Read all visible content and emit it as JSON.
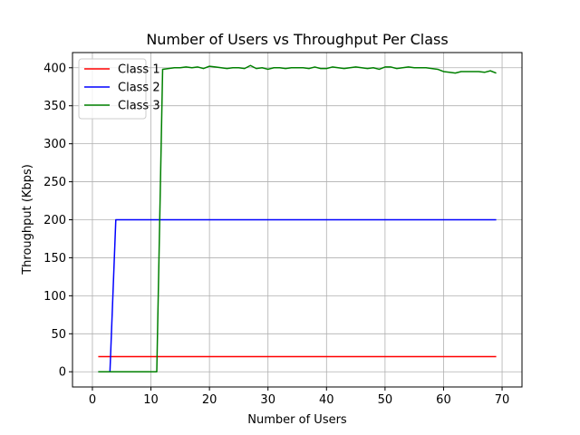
{
  "chart_data": {
    "type": "line",
    "title": "Number of Users vs Throughput Per Class",
    "xlabel": "Number of Users",
    "ylabel": "Throughput (Kbps)",
    "xlim": [
      -3.4,
      73.4
    ],
    "ylim": [
      -20,
      420
    ],
    "xticks": [
      0,
      10,
      20,
      30,
      40,
      50,
      60,
      70
    ],
    "yticks": [
      0,
      50,
      100,
      150,
      200,
      250,
      300,
      350,
      400
    ],
    "grid": true,
    "legend_position": "top-left",
    "series": [
      {
        "name": "Class 1",
        "color": "#ff0000",
        "points": [
          [
            1,
            20
          ],
          [
            69,
            20
          ]
        ]
      },
      {
        "name": "Class 2",
        "color": "#0000ff",
        "points": [
          [
            1,
            0
          ],
          [
            3,
            0
          ],
          [
            4,
            200
          ],
          [
            69,
            200
          ]
        ]
      },
      {
        "name": "Class 3",
        "color": "#008000",
        "points": [
          [
            1,
            0
          ],
          [
            11,
            0
          ],
          [
            12,
            398
          ],
          [
            13,
            399
          ],
          [
            14,
            400
          ],
          [
            15,
            400
          ],
          [
            16,
            401
          ],
          [
            17,
            400
          ],
          [
            18,
            401
          ],
          [
            19,
            399
          ],
          [
            20,
            402
          ],
          [
            21,
            401
          ],
          [
            22,
            400
          ],
          [
            23,
            399
          ],
          [
            24,
            400
          ],
          [
            25,
            400
          ],
          [
            26,
            399
          ],
          [
            27,
            403
          ],
          [
            28,
            399
          ],
          [
            29,
            400
          ],
          [
            30,
            398
          ],
          [
            31,
            400
          ],
          [
            32,
            400
          ],
          [
            33,
            399
          ],
          [
            34,
            400
          ],
          [
            35,
            400
          ],
          [
            36,
            400
          ],
          [
            37,
            399
          ],
          [
            38,
            401
          ],
          [
            39,
            399
          ],
          [
            40,
            399
          ],
          [
            41,
            401
          ],
          [
            42,
            400
          ],
          [
            43,
            399
          ],
          [
            44,
            400
          ],
          [
            45,
            401
          ],
          [
            46,
            400
          ],
          [
            47,
            399
          ],
          [
            48,
            400
          ],
          [
            49,
            398
          ],
          [
            50,
            401
          ],
          [
            51,
            401
          ],
          [
            52,
            399
          ],
          [
            53,
            400
          ],
          [
            54,
            401
          ],
          [
            55,
            400
          ],
          [
            56,
            400
          ],
          [
            57,
            400
          ],
          [
            58,
            399
          ],
          [
            59,
            398
          ],
          [
            60,
            395
          ],
          [
            61,
            394
          ],
          [
            62,
            393
          ],
          [
            63,
            395
          ],
          [
            64,
            395
          ],
          [
            65,
            395
          ],
          [
            66,
            395
          ],
          [
            67,
            394
          ],
          [
            68,
            396
          ],
          [
            69,
            393
          ]
        ]
      }
    ]
  }
}
